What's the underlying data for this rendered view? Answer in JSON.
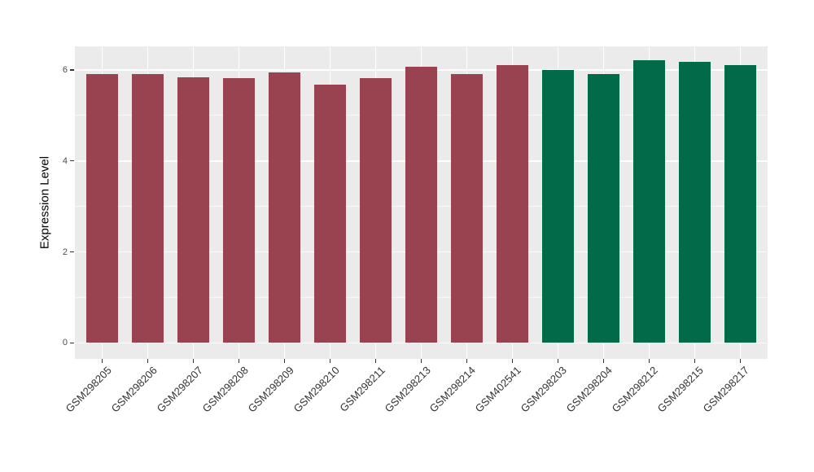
{
  "chart_data": {
    "type": "bar",
    "title": "",
    "xlabel": "",
    "ylabel": "Expression Level",
    "categories": [
      "GSM298205",
      "GSM298206",
      "GSM298207",
      "GSM298208",
      "GSM298209",
      "GSM298210",
      "GSM298211",
      "GSM298213",
      "GSM298214",
      "GSM402541",
      "GSM298203",
      "GSM298204",
      "GSM298212",
      "GSM298215",
      "GSM298217"
    ],
    "values": [
      5.92,
      5.92,
      5.84,
      5.82,
      5.94,
      5.68,
      5.83,
      6.08,
      5.91,
      6.1,
      6.0,
      5.91,
      6.21,
      6.18,
      6.11
    ],
    "bar_colors": [
      "#9A4350",
      "#9A4350",
      "#9A4350",
      "#9A4350",
      "#9A4350",
      "#9A4350",
      "#9A4350",
      "#9A4350",
      "#9A4350",
      "#9A4350",
      "#016A49",
      "#016A49",
      "#016A49",
      "#016A49",
      "#016A49"
    ],
    "groups": [
      {
        "name": "group-maroon",
        "color": "#9A4350",
        "count": 10
      },
      {
        "name": "group-green",
        "color": "#016A49",
        "count": 5
      }
    ],
    "y_ticks": [
      {
        "label": "0",
        "value": 0
      },
      {
        "label": "2",
        "value": 2
      },
      {
        "label": "4",
        "value": 4
      },
      {
        "label": "6",
        "value": 6
      }
    ],
    "y_minor_ticks": [
      1,
      3,
      5
    ],
    "ylim": [
      -0.35,
      6.52
    ],
    "grid": true,
    "legend": "none",
    "panel_bg": "#EBEBEB",
    "grid_color": "#FFFFFF"
  }
}
